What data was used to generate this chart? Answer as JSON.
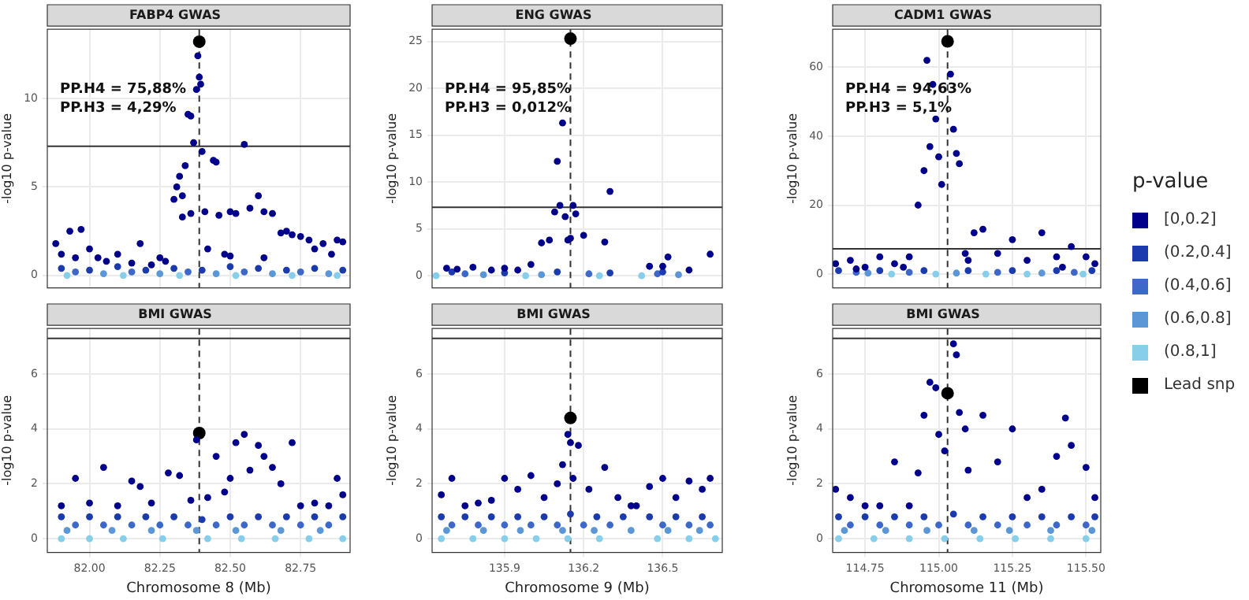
{
  "chart_data": [
    {
      "type": "scatter",
      "title": "FABP4 GWAS",
      "ylabel": "-log10 p-value",
      "annotations": [
        "PP.H4 = 75,88%",
        "PP.H3 = 4,29%"
      ],
      "legend": "right",
      "legend_title": "p-value",
      "xlim": [
        81.85,
        82.926
      ],
      "xticks": [
        {
          "value": 82,
          "label": null
        },
        {
          "value": 82.25,
          "label": null
        },
        {
          "value": 82.5,
          "label": null
        },
        {
          "value": 82.75,
          "label": null
        }
      ],
      "ylim": [
        -0.7,
        13.9
      ],
      "yticks": [
        0,
        5,
        10
      ],
      "tick_labels": "y",
      "grid": true,
      "marker": "circle",
      "ref_lines": [
        {
          "axis": "x",
          "value": 82.39,
          "color": "#333333",
          "line_style": "dashed"
        },
        {
          "axis": "y",
          "value": 7.3,
          "color": "#333333"
        }
      ],
      "series": [
        {
          "name": "[0,0.2]",
          "color": "#00008b",
          "x": [
            81.88,
            81.9,
            81.93,
            81.95,
            81.97,
            82.0,
            82.03,
            82.06,
            82.1,
            82.15,
            82.18,
            82.22,
            82.25,
            82.27,
            82.3,
            82.31,
            82.32,
            82.33,
            82.34,
            82.35,
            82.36,
            82.37,
            82.38,
            82.385,
            82.39,
            82.395,
            82.4,
            82.41,
            82.42,
            82.44,
            82.46,
            82.48,
            82.5,
            82.52,
            82.55,
            82.57,
            82.6,
            82.62,
            82.65,
            82.68,
            82.7,
            82.72,
            82.75,
            82.78,
            82.8,
            82.83,
            82.86,
            82.88,
            82.9,
            82.62,
            82.5,
            82.45,
            82.36,
            82.33
          ],
          "values": [
            1.8,
            1.2,
            2.5,
            1.0,
            2.6,
            1.5,
            1.0,
            0.8,
            1.2,
            0.7,
            1.8,
            0.6,
            1.0,
            0.8,
            4.3,
            5.0,
            5.6,
            4.5,
            6.2,
            9.1,
            9.0,
            7.5,
            10.5,
            12.4,
            11.2,
            10.8,
            7.0,
            3.6,
            1.5,
            6.5,
            3.4,
            1.2,
            3.6,
            3.5,
            7.4,
            3.8,
            4.5,
            3.6,
            3.5,
            2.4,
            2.5,
            2.3,
            2.2,
            2.0,
            1.5,
            1.8,
            1.2,
            2.0,
            1.9,
            1.0,
            1.1,
            6.4,
            3.5,
            3.3
          ]
        },
        {
          "name": "(0.2,0.4]",
          "color": "#1a3aad",
          "x": [
            81.9,
            82.0,
            82.1,
            82.2,
            82.3,
            82.4,
            82.5,
            82.6,
            82.7,
            82.8,
            82.9
          ],
          "values": [
            0.4,
            0.3,
            0.5,
            0.3,
            0.4,
            0.3,
            0.5,
            0.4,
            0.3,
            0.4,
            0.3
          ]
        },
        {
          "name": "(0.4,0.6]",
          "color": "#3d68c9",
          "x": [
            81.95,
            82.15,
            82.35,
            82.55,
            82.75
          ],
          "values": [
            0.2,
            0.2,
            0.2,
            0.2,
            0.2
          ]
        },
        {
          "name": "(0.6,0.8]",
          "color": "#5b96d6",
          "x": [
            82.05,
            82.25,
            82.45,
            82.65,
            82.85
          ],
          "values": [
            0.1,
            0.1,
            0.1,
            0.1,
            0.1
          ]
        },
        {
          "name": "(0.8,1]",
          "color": "#87ceeb",
          "x": [
            81.92,
            82.12,
            82.32,
            82.52,
            82.72,
            82.88
          ],
          "values": [
            0,
            0,
            0,
            0,
            0,
            0
          ]
        },
        {
          "name": "Lead snp",
          "color": "#000000",
          "x": [
            82.39
          ],
          "values": [
            13.2
          ]
        }
      ]
    },
    {
      "type": "scatter",
      "title": "ENG GWAS",
      "ylabel": "-log10 p-value",
      "annotations": [
        "PP.H4 = 95,85%",
        "PP.H3 = 0,012%"
      ],
      "xlim": [
        135.625,
        136.726
      ],
      "xticks": [
        {
          "value": 135.9,
          "label": null
        },
        {
          "value": 136.2,
          "label": null
        },
        {
          "value": 136.5,
          "label": null
        }
      ],
      "ylim": [
        -1.3,
        26.3
      ],
      "yticks": [
        0,
        5,
        10,
        15,
        20,
        25
      ],
      "tick_labels": "y",
      "grid": true,
      "marker": "circle",
      "ref_lines": [
        {
          "axis": "x",
          "value": 136.15,
          "color": "#333333",
          "line_style": "dashed"
        },
        {
          "axis": "y",
          "value": 7.3,
          "color": "#333333"
        }
      ],
      "series": [
        {
          "color": "#00008b",
          "x": [
            135.68,
            135.72,
            135.78,
            135.85,
            135.9,
            135.95,
            136.0,
            136.04,
            136.07,
            136.09,
            136.1,
            136.11,
            136.12,
            136.13,
            136.14,
            136.15,
            136.16,
            136.17,
            136.2,
            136.28,
            136.3,
            136.45,
            136.5,
            136.52,
            136.6,
            136.68
          ],
          "values": [
            0.8,
            0.7,
            0.9,
            0.6,
            0.8,
            0.6,
            1.2,
            3.5,
            3.8,
            6.8,
            12.2,
            7.5,
            16.3,
            6.3,
            3.8,
            4.0,
            7.5,
            6.6,
            4.3,
            3.6,
            9.0,
            1.0,
            1.0,
            2.0,
            0.6,
            2.3
          ]
        },
        {
          "color": "#1a3aad",
          "x": [
            135.7,
            135.9,
            136.1,
            136.3,
            136.5
          ],
          "values": [
            0.4,
            0.3,
            0.4,
            0.3,
            0.4
          ]
        },
        {
          "color": "#3d68c9",
          "x": [
            135.75,
            136.22,
            136.48
          ],
          "values": [
            0.2,
            0.2,
            0.2
          ]
        },
        {
          "color": "#5b96d6",
          "x": [
            135.82,
            136.04,
            136.56
          ],
          "values": [
            0.1,
            0.1,
            0.1
          ]
        },
        {
          "color": "#87ceeb",
          "x": [
            135.64,
            135.98,
            136.26,
            136.42
          ],
          "values": [
            0,
            0,
            0,
            0
          ]
        },
        {
          "color": "#000000",
          "x": [
            136.15
          ],
          "values": [
            25.3
          ]
        }
      ]
    },
    {
      "type": "scatter",
      "title": "CADM1 GWAS",
      "ylabel": "-log10 p-value",
      "annotations": [
        "PP.H4 = 94,63%",
        "PP.H3 = 5,1%"
      ],
      "xlim": [
        114.64,
        115.55
      ],
      "xticks": [
        {
          "value": 114.75,
          "label": null
        },
        {
          "value": 115,
          "label": null
        },
        {
          "value": 115.25,
          "label": null
        },
        {
          "value": 115.5,
          "label": null
        }
      ],
      "ylim": [
        -4,
        71
      ],
      "yticks": [
        0,
        20,
        40,
        60
      ],
      "tick_labels": "y",
      "grid": true,
      "marker": "circle",
      "ref_lines": [
        {
          "axis": "x",
          "value": 115.03,
          "color": "#333333",
          "line_style": "dashed"
        },
        {
          "axis": "y",
          "value": 7.3,
          "color": "#333333"
        }
      ],
      "series": [
        {
          "color": "#00008b",
          "x": [
            114.65,
            114.7,
            114.75,
            114.8,
            114.85,
            114.9,
            114.93,
            114.95,
            114.96,
            114.97,
            114.98,
            114.99,
            115.0,
            115.01,
            115.04,
            115.05,
            115.06,
            115.07,
            115.09,
            115.12,
            115.15,
            115.2,
            115.25,
            115.3,
            115.35,
            115.4,
            115.45,
            115.5,
            115.53,
            114.72,
            114.88,
            115.1,
            115.42
          ],
          "values": [
            3,
            4,
            2,
            5,
            3,
            5,
            20,
            30,
            62,
            37,
            55,
            45,
            34,
            26,
            58,
            42,
            35,
            32,
            6,
            12,
            13,
            6,
            10,
            4,
            12,
            5,
            8,
            5,
            3,
            1.5,
            2,
            4,
            2
          ]
        },
        {
          "color": "#1a3aad",
          "x": [
            114.66,
            114.8,
            114.95,
            115.1,
            115.25,
            115.4,
            115.52
          ],
          "values": [
            1,
            1,
            1,
            1,
            1,
            1,
            1
          ]
        },
        {
          "color": "#3d68c9",
          "x": [
            114.72,
            114.9,
            115.2,
            115.46
          ],
          "values": [
            0.5,
            0.5,
            0.5,
            0.5
          ]
        },
        {
          "color": "#5b96d6",
          "x": [
            114.76,
            115.06,
            115.35
          ],
          "values": [
            0.3,
            0.3,
            0.3
          ]
        },
        {
          "color": "#87ceeb",
          "x": [
            114.84,
            114.99,
            115.16,
            115.3,
            115.49
          ],
          "values": [
            0,
            0,
            0,
            0,
            0
          ]
        },
        {
          "color": "#000000",
          "x": [
            115.03
          ],
          "values": [
            67.5
          ]
        }
      ]
    },
    {
      "type": "scatter",
      "title": "BMI GWAS",
      "xlabel": "Chromosome 8 (Mb)",
      "ylabel": "-log10 p-value",
      "xlim": [
        81.85,
        82.926
      ],
      "xticks": [
        {
          "value": 82,
          "label": "82.00"
        },
        {
          "value": 82.25,
          "label": "82.25"
        },
        {
          "value": 82.5,
          "label": "82.50"
        },
        {
          "value": 82.75,
          "label": "82.75"
        }
      ],
      "ylim": [
        -0.5,
        7.66
      ],
      "yticks": [
        0,
        2,
        4,
        6
      ],
      "grid": true,
      "marker": "circle",
      "ref_lines": [
        {
          "axis": "x",
          "value": 82.39,
          "color": "#333333",
          "line_style": "dashed"
        },
        {
          "axis": "y",
          "value": 7.3,
          "color": "#333333"
        }
      ],
      "series": [
        {
          "color": "#00008b",
          "x": [
            81.9,
            81.95,
            82.0,
            82.05,
            82.1,
            82.15,
            82.18,
            82.22,
            82.28,
            82.32,
            82.36,
            82.38,
            82.42,
            82.45,
            82.48,
            82.5,
            82.52,
            82.55,
            82.57,
            82.6,
            82.62,
            82.65,
            82.68,
            82.72,
            82.75,
            82.8,
            82.85,
            82.88,
            82.9
          ],
          "values": [
            1.2,
            2.2,
            1.3,
            2.6,
            1.2,
            2.1,
            1.9,
            1.3,
            2.4,
            2.3,
            1.4,
            3.6,
            1.5,
            3.0,
            1.7,
            2.2,
            3.5,
            3.8,
            2.5,
            3.4,
            3.0,
            2.6,
            2.0,
            3.5,
            1.2,
            1.3,
            1.2,
            2.2,
            1.6
          ]
        },
        {
          "color": "#1a3aad",
          "x": [
            81.9,
            82.0,
            82.1,
            82.2,
            82.3,
            82.4,
            82.5,
            82.6,
            82.7,
            82.8,
            82.9
          ],
          "values": [
            0.8,
            0.8,
            0.8,
            0.8,
            0.8,
            0.7,
            0.8,
            0.8,
            0.8,
            0.8,
            0.8
          ]
        },
        {
          "color": "#3d68c9",
          "x": [
            81.95,
            82.05,
            82.15,
            82.25,
            82.35,
            82.45,
            82.55,
            82.65,
            82.75,
            82.85
          ],
          "values": [
            0.5,
            0.5,
            0.5,
            0.5,
            0.5,
            0.5,
            0.5,
            0.5,
            0.5,
            0.5
          ]
        },
        {
          "color": "#5b96d6",
          "x": [
            81.92,
            82.08,
            82.22,
            82.38,
            82.52,
            82.68,
            82.82
          ],
          "values": [
            0.3,
            0.3,
            0.3,
            0.3,
            0.3,
            0.3,
            0.3
          ]
        },
        {
          "color": "#87ceeb",
          "x": [
            81.9,
            82.0,
            82.12,
            82.26,
            82.42,
            82.54,
            82.66,
            82.78,
            82.9
          ],
          "values": [
            0,
            0,
            0,
            0,
            0,
            0,
            0,
            0,
            0
          ]
        },
        {
          "color": "#000000",
          "x": [
            82.39
          ],
          "values": [
            3.85
          ]
        }
      ]
    },
    {
      "type": "scatter",
      "title": "BMI GWAS",
      "xlabel": "Chromosome 9 (Mb)",
      "ylabel": "-log10 p-value",
      "xlim": [
        135.625,
        136.726
      ],
      "xticks": [
        135.9,
        136.2,
        136.5
      ],
      "ylim": [
        -0.5,
        7.66
      ],
      "yticks": [
        0,
        2,
        4,
        6
      ],
      "grid": true,
      "marker": "circle",
      "ref_lines": [
        {
          "axis": "x",
          "value": 136.15,
          "color": "#333333",
          "line_style": "dashed"
        },
        {
          "axis": "y",
          "value": 7.3,
          "color": "#333333"
        }
      ],
      "series": [
        {
          "color": "#00008b",
          "x": [
            135.66,
            135.7,
            135.75,
            135.8,
            135.85,
            135.9,
            135.95,
            136.0,
            136.05,
            136.1,
            136.12,
            136.14,
            136.15,
            136.16,
            136.18,
            136.22,
            136.28,
            136.33,
            136.38,
            136.4,
            136.45,
            136.5,
            136.55,
            136.6,
            136.65,
            136.68
          ],
          "values": [
            1.6,
            2.2,
            1.2,
            1.3,
            1.4,
            2.2,
            1.8,
            2.3,
            1.5,
            2.0,
            2.7,
            3.8,
            3.5,
            2.2,
            3.4,
            1.8,
            2.6,
            1.5,
            1.2,
            1.2,
            1.9,
            2.2,
            1.5,
            2.1,
            1.8,
            2.2
          ]
        },
        {
          "color": "#1a3aad",
          "x": [
            135.66,
            135.75,
            135.85,
            135.95,
            136.05,
            136.15,
            136.25,
            136.35,
            136.45,
            136.55,
            136.65
          ],
          "values": [
            0.8,
            0.8,
            0.8,
            0.8,
            0.8,
            0.9,
            0.8,
            0.8,
            0.8,
            0.8,
            0.8
          ]
        },
        {
          "color": "#3d68c9",
          "x": [
            135.7,
            135.8,
            135.9,
            136.0,
            136.1,
            136.2,
            136.3,
            136.5,
            136.6,
            136.68
          ],
          "values": [
            0.5,
            0.5,
            0.5,
            0.5,
            0.5,
            0.5,
            0.5,
            0.5,
            0.5,
            0.5
          ]
        },
        {
          "color": "#5b96d6",
          "x": [
            135.68,
            135.82,
            135.96,
            136.12,
            136.24,
            136.38,
            136.52,
            136.64
          ],
          "values": [
            0.3,
            0.3,
            0.3,
            0.3,
            0.3,
            0.3,
            0.3,
            0.3
          ]
        },
        {
          "color": "#87ceeb",
          "x": [
            135.66,
            135.78,
            135.9,
            136.02,
            136.14,
            136.26,
            136.48,
            136.6,
            136.7
          ],
          "values": [
            0,
            0,
            0,
            0,
            0,
            0,
            0,
            0,
            0
          ]
        },
        {
          "color": "#000000",
          "x": [
            136.15
          ],
          "values": [
            4.4
          ]
        }
      ]
    },
    {
      "type": "scatter",
      "title": "BMI GWAS",
      "xlabel": "Chromosome 11 (Mb)",
      "ylabel": "-log10 p-value",
      "xlim": [
        114.64,
        115.55
      ],
      "xticks": [
        114.75,
        {
          "value": 115,
          "label": "115.00"
        },
        115.25,
        {
          "value": 115.5,
          "label": "115.50"
        }
      ],
      "ylim": [
        -0.5,
        7.66
      ],
      "yticks": [
        0,
        2,
        4,
        6
      ],
      "grid": true,
      "marker": "circle",
      "ref_lines": [
        {
          "axis": "x",
          "value": 115.03,
          "color": "#333333",
          "line_style": "dashed"
        },
        {
          "axis": "y",
          "value": 7.3,
          "color": "#333333"
        }
      ],
      "series": [
        {
          "color": "#00008b",
          "x": [
            114.65,
            114.7,
            114.75,
            114.8,
            114.85,
            114.9,
            114.93,
            114.95,
            114.97,
            114.99,
            115.0,
            115.02,
            115.05,
            115.06,
            115.07,
            115.09,
            115.1,
            115.15,
            115.2,
            115.25,
            115.3,
            115.35,
            115.4,
            115.43,
            115.45,
            115.5,
            115.53
          ],
          "values": [
            1.8,
            1.5,
            1.2,
            1.2,
            2.8,
            1.2,
            2.4,
            4.5,
            5.7,
            5.5,
            3.8,
            3.2,
            7.1,
            6.7,
            4.6,
            4.0,
            2.5,
            4.5,
            2.8,
            4.0,
            1.5,
            1.8,
            3.0,
            4.4,
            3.4,
            2.6,
            1.5
          ]
        },
        {
          "color": "#1a3aad",
          "x": [
            114.66,
            114.75,
            114.85,
            114.95,
            115.05,
            115.15,
            115.25,
            115.35,
            115.45,
            115.53
          ],
          "values": [
            0.8,
            0.8,
            0.8,
            0.8,
            0.9,
            0.8,
            0.8,
            0.8,
            0.8,
            0.8
          ]
        },
        {
          "color": "#3d68c9",
          "x": [
            114.7,
            114.8,
            114.9,
            115.0,
            115.1,
            115.2,
            115.3,
            115.4,
            115.5
          ],
          "values": [
            0.5,
            0.5,
            0.5,
            0.5,
            0.5,
            0.5,
            0.5,
            0.5,
            0.5
          ]
        },
        {
          "color": "#5b96d6",
          "x": [
            114.68,
            114.82,
            114.96,
            115.12,
            115.24,
            115.38,
            115.52
          ],
          "values": [
            0.3,
            0.3,
            0.3,
            0.3,
            0.3,
            0.3,
            0.3
          ]
        },
        {
          "color": "#87ceeb",
          "x": [
            114.66,
            114.78,
            114.9,
            115.02,
            115.14,
            115.26,
            115.38,
            115.5
          ],
          "values": [
            0,
            0,
            0,
            0,
            0,
            0,
            0,
            0
          ]
        },
        {
          "color": "#000000",
          "x": [
            115.03
          ],
          "values": [
            5.3
          ]
        }
      ]
    }
  ]
}
